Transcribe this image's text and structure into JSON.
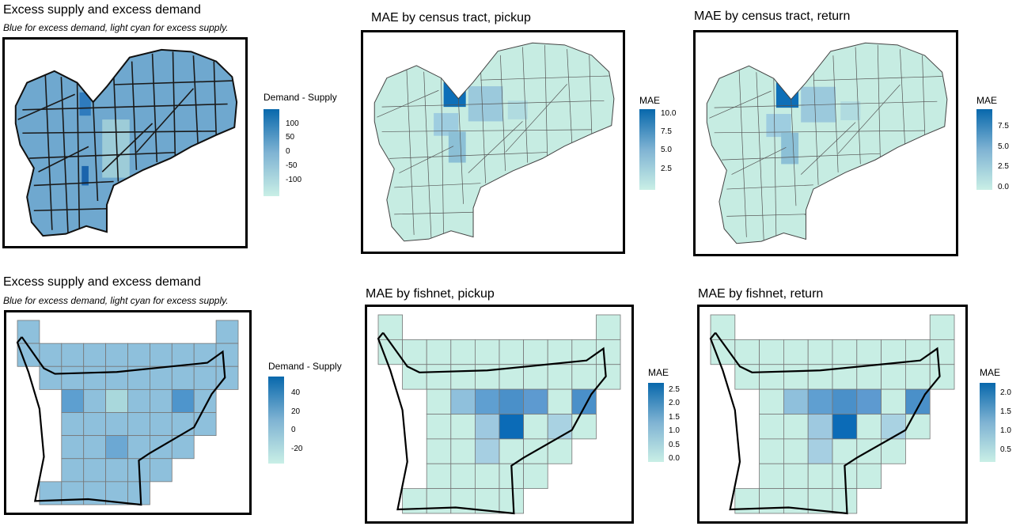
{
  "palette": {
    "low": "#c9efe6",
    "mid": "#7fb3d3",
    "high": "#0868ac"
  },
  "panels": [
    {
      "title": "Excess supply and excess demand",
      "subtitle": "Blue for excess demand, light cyan for excess supply.",
      "legend": {
        "title": "Demand - Supply",
        "ticks": [
          "100",
          "50",
          "0",
          "-50",
          "-100"
        ]
      }
    },
    {
      "title": "MAE by census tract, pickup",
      "legend": {
        "title": "MAE",
        "ticks": [
          "10.0",
          "7.5",
          "5.0",
          "2.5"
        ]
      }
    },
    {
      "title": "MAE by census tract, return",
      "legend": {
        "title": "MAE",
        "ticks": [
          "7.5",
          "5.0",
          "2.5",
          "0.0"
        ]
      }
    },
    {
      "title": "Excess supply and excess demand",
      "subtitle": "Blue for excess demand, light cyan for excess supply.",
      "legend": {
        "title": "Demand - Supply",
        "ticks": [
          "40",
          "20",
          "0",
          "-20"
        ]
      }
    },
    {
      "title": "MAE by fishnet, pickup",
      "legend": {
        "title": "MAE",
        "ticks": [
          "2.5",
          "2.0",
          "1.5",
          "1.0",
          "0.5",
          "0.0"
        ]
      }
    },
    {
      "title": "MAE by fishnet, return",
      "legend": {
        "title": "MAE",
        "ticks": [
          "2.0",
          "1.5",
          "1.0",
          "0.5"
        ]
      }
    }
  ]
}
